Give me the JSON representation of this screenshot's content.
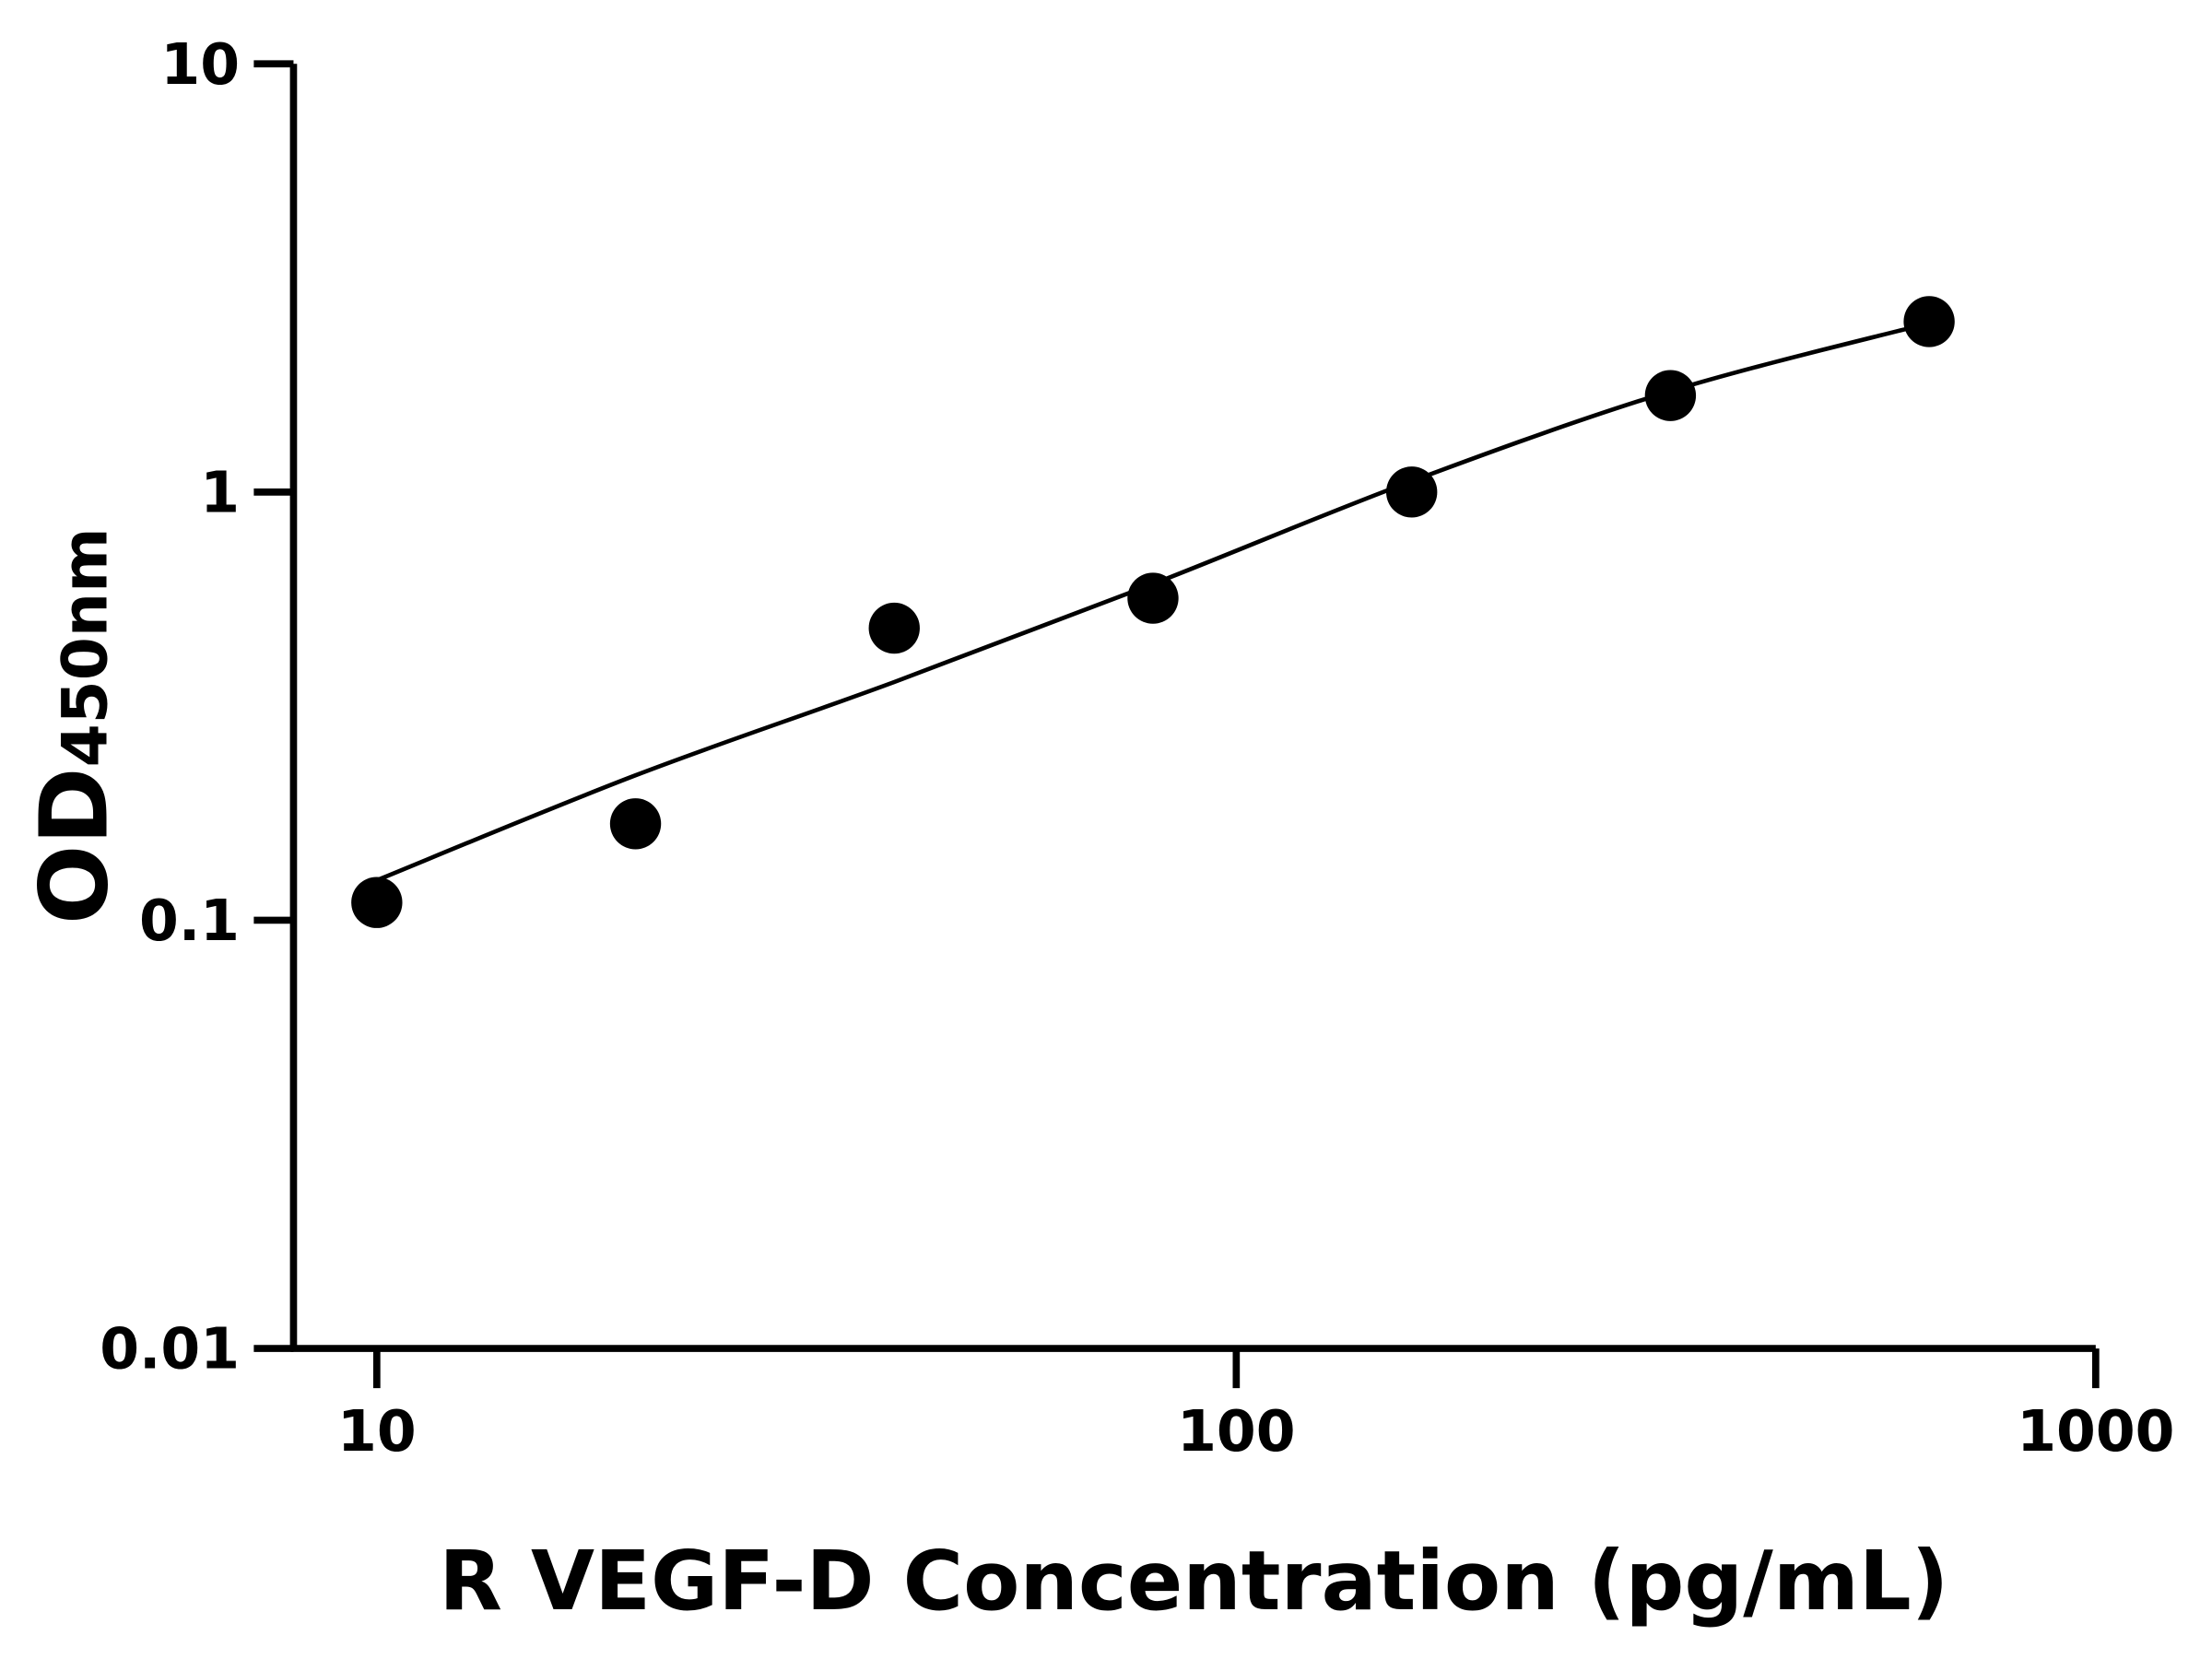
{
  "chart_data": {
    "type": "scatter",
    "title": "",
    "xlabel": "R VEGF-D Concentration (pg/mL)",
    "ylabel_main": "OD",
    "ylabel_sub": "450nm",
    "xscale": "log",
    "yscale": "log",
    "xlim": [
      8,
      1000
    ],
    "ylim": [
      0.01,
      10
    ],
    "xticks": [
      10,
      100,
      1000
    ],
    "xtick_labels": [
      "10",
      "100",
      "1000"
    ],
    "yticks": [
      0.01,
      0.1,
      1,
      10
    ],
    "ytick_labels": [
      "0.01",
      "0.1",
      "1",
      "10"
    ],
    "grid": false,
    "points": {
      "x": [
        10,
        20,
        40,
        80,
        160,
        320,
        640
      ],
      "y": [
        0.11,
        0.168,
        0.481,
        0.565,
        1.0,
        1.68,
        2.5
      ]
    },
    "fit_curve": {
      "x": [
        10,
        20,
        40,
        80,
        160,
        320,
        640
      ],
      "y": [
        0.124,
        0.218,
        0.36,
        0.61,
        1.06,
        1.72,
        2.48
      ]
    },
    "colors": {
      "marks": "#000000",
      "background": "#ffffff"
    }
  }
}
